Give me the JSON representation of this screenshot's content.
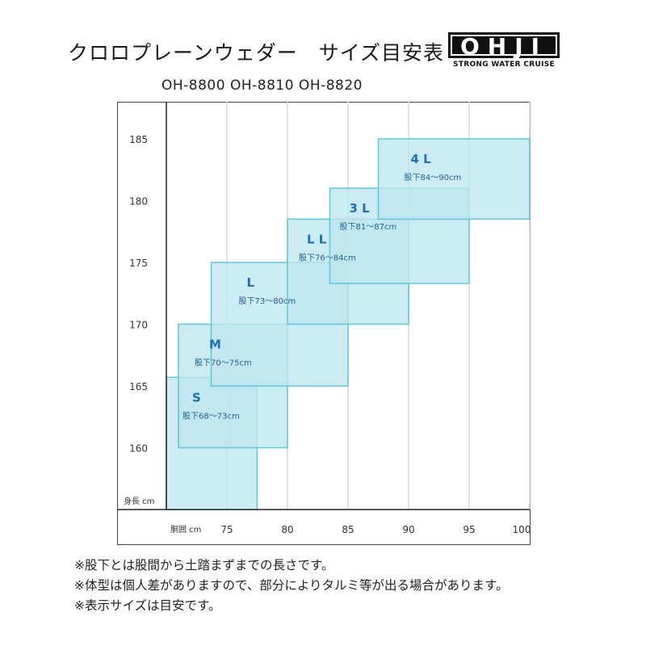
{
  "header": {
    "title": "クロロプレーンウェダー　サイズ目安表",
    "models": "OH-8800 OH-8810 OH-8820"
  },
  "logo": {
    "main": "OHJI",
    "sub": "STRONG WATER CRUISE"
  },
  "colors": {
    "box_fill": "#bfe6ef",
    "box_stroke": "#5cc8dc",
    "size_label": "#1c6fb8",
    "grid": "#d9d9d9"
  },
  "chart_data": {
    "type": "range-box",
    "xlabel": "胴囲 cm",
    "ylabel": "身長 cm",
    "xlim": [
      70,
      100
    ],
    "ylim": [
      155,
      188
    ],
    "x_ticks": [
      75,
      80,
      85,
      90,
      95,
      100
    ],
    "y_ticks": [
      160,
      165,
      170,
      175,
      180,
      185
    ],
    "grid": "vertical",
    "sizes": [
      {
        "name": "S",
        "inseam": "股下68～73cm",
        "waist": [
          70,
          77.5
        ],
        "height": [
          155,
          165.7
        ]
      },
      {
        "name": "M",
        "inseam": "股下70～75cm",
        "waist": [
          71,
          80
        ],
        "height": [
          160,
          170
        ]
      },
      {
        "name": "L",
        "inseam": "股下73～80cm",
        "waist": [
          73.7,
          85
        ],
        "height": [
          165,
          175
        ]
      },
      {
        "name": "L L",
        "inseam": "股下76～84cm",
        "waist": [
          80,
          90
        ],
        "height": [
          170,
          178.5
        ]
      },
      {
        "name": "3 L",
        "inseam": "股下81～87cm",
        "waist": [
          83.5,
          95
        ],
        "height": [
          173.3,
          181
        ]
      },
      {
        "name": "4 L",
        "inseam": "股下84～90cm",
        "waist": [
          87.5,
          100
        ],
        "height": [
          178.5,
          185
        ]
      }
    ]
  },
  "notes": [
    "※股下とは股間から土踏まずまでの長さです。",
    "※体型は個人差がありますので、部分によりタルミ等が出る場合があります。",
    "※表示サイズは目安です。"
  ]
}
